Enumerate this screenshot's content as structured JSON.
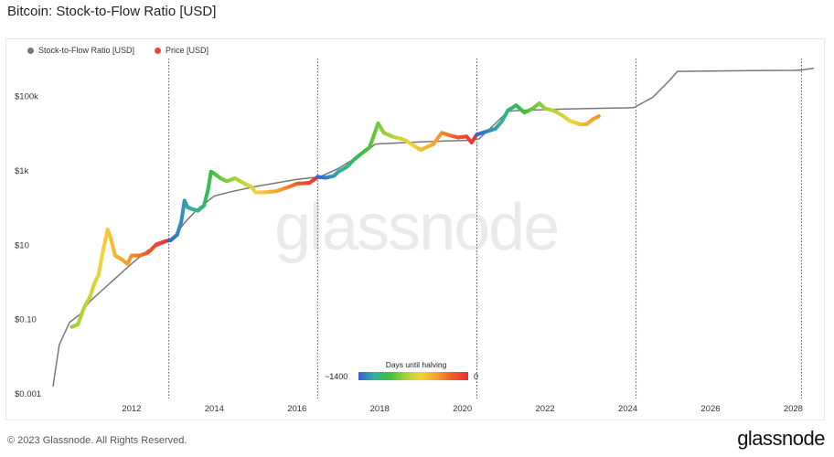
{
  "title": "Bitcoin: Stock-to-Flow Ratio [USD]",
  "footer": {
    "copyright": "© 2023 Glassnode. All Rights Reserved.",
    "brand": "glassnode"
  },
  "watermark": "glassnode",
  "colorbar": {
    "title": "Days until halving",
    "min_label": "~1400",
    "max_label": "0"
  },
  "colors": {
    "s2f": "#777777",
    "price": "#e8453c",
    "grid": "#555555"
  },
  "chart_data": {
    "type": "line",
    "title": "Bitcoin: Stock-to-Flow Ratio [USD]",
    "y_scale": "log",
    "ylim": [
      0.001,
      1000000
    ],
    "xlim": [
      2010.1,
      2028.5
    ],
    "y_ticks": [
      {
        "value": 0.001,
        "label": "$0.001"
      },
      {
        "value": 0.1,
        "label": "$0.10"
      },
      {
        "value": 10,
        "label": "$10"
      },
      {
        "value": 1000,
        "label": "$1k"
      },
      {
        "value": 100000,
        "label": "$100k"
      }
    ],
    "x_ticks": [
      {
        "value": 2012,
        "label": "2012"
      },
      {
        "value": 2014,
        "label": "2014"
      },
      {
        "value": 2016,
        "label": "2016"
      },
      {
        "value": 2018,
        "label": "2018"
      },
      {
        "value": 2020,
        "label": "2020"
      },
      {
        "value": 2022,
        "label": "2022"
      },
      {
        "value": 2024,
        "label": "2024"
      },
      {
        "value": 2026,
        "label": "2026"
      },
      {
        "value": 2028,
        "label": "2028"
      }
    ],
    "halvings": [
      2012.9,
      2016.5,
      2020.35,
      2024.2,
      2028.2
    ],
    "legend": [
      {
        "name": "Stock-to-Flow Ratio [USD]",
        "color": "#777777"
      },
      {
        "name": "Price [USD]",
        "color": "#e8453c"
      }
    ],
    "series": [
      {
        "name": "Stock-to-Flow Ratio [USD]",
        "x": [
          2010.1,
          2010.25,
          2010.5,
          2010.75,
          2011.0,
          2011.3,
          2011.6,
          2012.0,
          2012.4,
          2012.8,
          2012.95,
          2013.3,
          2013.6,
          2014.0,
          2014.4,
          2015.0,
          2015.5,
          2016.0,
          2016.4,
          2016.55,
          2017.0,
          2017.5,
          2017.9,
          2018.5,
          2019.0,
          2019.5,
          2020.2,
          2020.4,
          2020.8,
          2021.1,
          2021.4,
          2022.0,
          2022.5,
          2023.0,
          2023.5,
          2024.0,
          2024.15,
          2024.6,
          2025.0,
          2025.2,
          2026.0,
          2027.0,
          2028.0,
          2028.2,
          2028.5
        ],
        "values": [
          0.0015,
          0.02,
          0.08,
          0.13,
          0.3,
          0.6,
          1.2,
          3,
          7,
          11,
          13,
          40,
          90,
          200,
          260,
          360,
          450,
          560,
          630,
          650,
          1100,
          2400,
          5000,
          5400,
          5700,
          6000,
          6300,
          6800,
          18000,
          38000,
          40000,
          42000,
          44000,
          45000,
          46000,
          47000,
          48000,
          90000,
          250000,
          450000,
          460000,
          470000,
          480000,
          490000,
          550000
        ]
      },
      {
        "name": "Price [USD]",
        "x": [
          2010.55,
          2010.7,
          2010.85,
          2011.0,
          2011.1,
          2011.2,
          2011.3,
          2011.42,
          2011.5,
          2011.6,
          2011.75,
          2011.9,
          2012.0,
          2012.2,
          2012.4,
          2012.6,
          2012.8,
          2012.95,
          2013.1,
          2013.2,
          2013.28,
          2013.35,
          2013.45,
          2013.6,
          2013.75,
          2013.85,
          2013.92,
          2014.0,
          2014.15,
          2014.3,
          2014.5,
          2014.7,
          2014.9,
          2015.0,
          2015.2,
          2015.5,
          2015.8,
          2016.0,
          2016.3,
          2016.5,
          2016.7,
          2016.9,
          2017.0,
          2017.2,
          2017.4,
          2017.6,
          2017.75,
          2017.85,
          2017.96,
          2018.1,
          2018.3,
          2018.6,
          2018.9,
          2019.0,
          2019.3,
          2019.5,
          2019.7,
          2019.9,
          2020.1,
          2020.22,
          2020.35,
          2020.6,
          2020.8,
          2020.95,
          2021.1,
          2021.3,
          2021.5,
          2021.7,
          2021.86,
          2022.0,
          2022.2,
          2022.4,
          2022.6,
          2022.85,
          2023.0,
          2023.15,
          2023.3
        ],
        "values": [
          0.06,
          0.07,
          0.2,
          0.4,
          0.9,
          1.5,
          6,
          25,
          14,
          5,
          4,
          3,
          5,
          5,
          6,
          10,
          12,
          13,
          18,
          40,
          150,
          100,
          90,
          80,
          110,
          300,
          900,
          800,
          600,
          500,
          600,
          450,
          350,
          250,
          250,
          270,
          350,
          430,
          450,
          650,
          620,
          700,
          900,
          1200,
          2000,
          3000,
          4000,
          8000,
          18000,
          10000,
          8000,
          6500,
          4000,
          3500,
          5000,
          10000,
          8500,
          7500,
          8000,
          5500,
          9000,
          11000,
          13000,
          20000,
          40000,
          55000,
          35000,
          45000,
          62000,
          45000,
          40000,
          30000,
          21000,
          17000,
          17000,
          23000,
          28000
        ]
      }
    ]
  }
}
